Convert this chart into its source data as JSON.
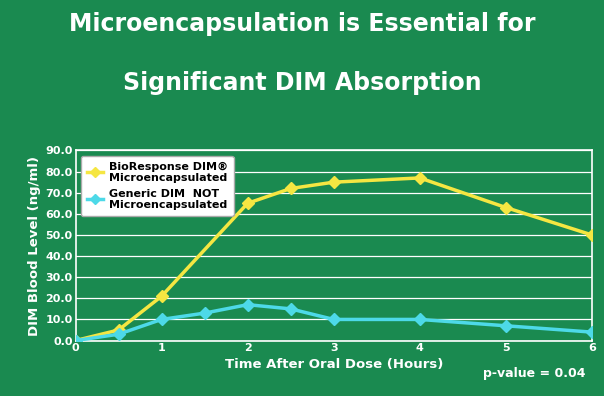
{
  "title_line1": "Microencapsulation is Essential for",
  "title_line2": "Significant DIM Absorption",
  "background_color": "#1a8a50",
  "plot_background_color": "#1a8a50",
  "grid_color": "#ffffff",
  "xlabel": "Time After Oral Dose (Hours)",
  "ylabel": "DIM Blood Level (ng/ml)",
  "xlim": [
    0,
    6
  ],
  "ylim": [
    0,
    90
  ],
  "yticks": [
    0.0,
    10.0,
    20.0,
    30.0,
    40.0,
    50.0,
    60.0,
    70.0,
    80.0,
    90.0
  ],
  "xticks": [
    0,
    1,
    2,
    3,
    4,
    5,
    6
  ],
  "bioresponse_x": [
    0,
    0.5,
    1,
    2,
    2.5,
    3,
    4,
    5,
    6
  ],
  "bioresponse_y": [
    0,
    5,
    21,
    65,
    72,
    75,
    77,
    63,
    50
  ],
  "generic_x": [
    0,
    0.5,
    1,
    1.5,
    2,
    2.5,
    3,
    4,
    5,
    6
  ],
  "generic_y": [
    0,
    3,
    10,
    13,
    17,
    15,
    10,
    10,
    7,
    4
  ],
  "bioresponse_color": "#f5e642",
  "generic_color": "#4dd9e8",
  "legend_label_bio": "BioResponse DIM®\nMicroencapsulated",
  "legend_label_gen": "Generic DIM  NOT\nMicroencapsulated",
  "pvalue_text": "p-value = 0.04",
  "title_color": "#ffffff",
  "pvalue_color": "#ffffff",
  "axis_label_color": "#ffffff",
  "tick_color": "#ffffff",
  "legend_bg": "#ffffff",
  "marker_style": "D",
  "line_width": 2.5,
  "marker_size": 6,
  "title_fontsize": 17,
  "axis_label_fontsize": 9.5,
  "tick_fontsize": 8,
  "legend_fontsize": 8,
  "pvalue_fontsize": 9
}
